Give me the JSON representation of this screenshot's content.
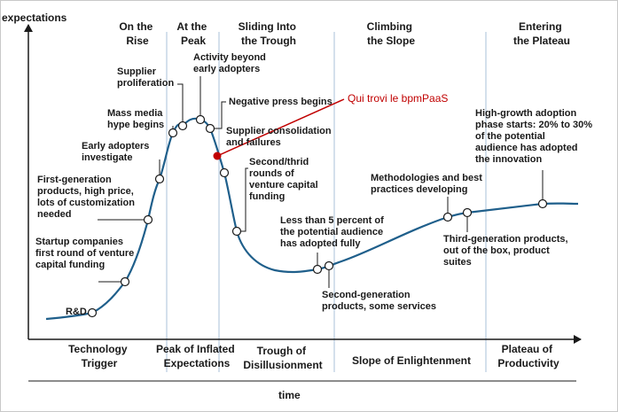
{
  "axes": {
    "y_label": "expectations",
    "x_label": "time"
  },
  "phases": [
    {
      "lines": [
        "On the",
        "Rise"
      ]
    },
    {
      "lines": [
        "At the",
        "Peak"
      ]
    },
    {
      "lines": [
        "Sliding Into",
        "the Trough"
      ]
    },
    {
      "lines": [
        "Climbing",
        "the Slope"
      ]
    },
    {
      "lines": [
        "Entering",
        "the Plateau"
      ]
    }
  ],
  "stages": [
    {
      "lines": [
        "Technology",
        "Trigger"
      ]
    },
    {
      "lines": [
        "Peak of Inflated",
        "Expectations"
      ]
    },
    {
      "lines": [
        "Trough of",
        "Disillusionment"
      ]
    },
    {
      "lines": [
        "Slope of Enlightenment"
      ]
    },
    {
      "lines": [
        "Plateau of",
        "Productivity"
      ]
    }
  ],
  "annotations": [
    {
      "lines": [
        "R&D"
      ]
    },
    {
      "lines": [
        "Startup companies",
        "first round of venture",
        "capital funding"
      ]
    },
    {
      "lines": [
        "First-generation",
        "products, high price,",
        "lots of customization",
        "needed"
      ]
    },
    {
      "lines": [
        "Early adopters",
        "investigate"
      ]
    },
    {
      "lines": [
        "Mass media",
        "hype begins"
      ]
    },
    {
      "lines": [
        "Supplier",
        "proliferation"
      ]
    },
    {
      "lines": [
        "Activity beyond",
        "early adopters"
      ]
    },
    {
      "lines": [
        "Negative press begins"
      ]
    },
    {
      "lines": [
        "Supplier consolidation",
        "and failures"
      ]
    },
    {
      "lines": [
        "Second/thrid",
        "rounds of",
        "venture capital",
        "funding"
      ]
    },
    {
      "lines": [
        "Less than 5 percent of",
        "the potential audience",
        "has adopted fully"
      ]
    },
    {
      "lines": [
        "Second-generation",
        "products, some services"
      ]
    },
    {
      "lines": [
        "Methodologies and best",
        "practices developing"
      ]
    },
    {
      "lines": [
        "Third-generation products,",
        "out of the box, product",
        "suites"
      ]
    },
    {
      "lines": [
        "High-growth adoption",
        "phase starts: 20% to 30%",
        "of the potential",
        "audience has adopted",
        "the innovation"
      ]
    }
  ],
  "callout": {
    "text": "Qui trovi le bpmPaaS",
    "color": "#c00000"
  },
  "colors": {
    "curve": "#1f5f8b",
    "divider": "#a9c0d8",
    "axis": "#1a1a1a"
  }
}
